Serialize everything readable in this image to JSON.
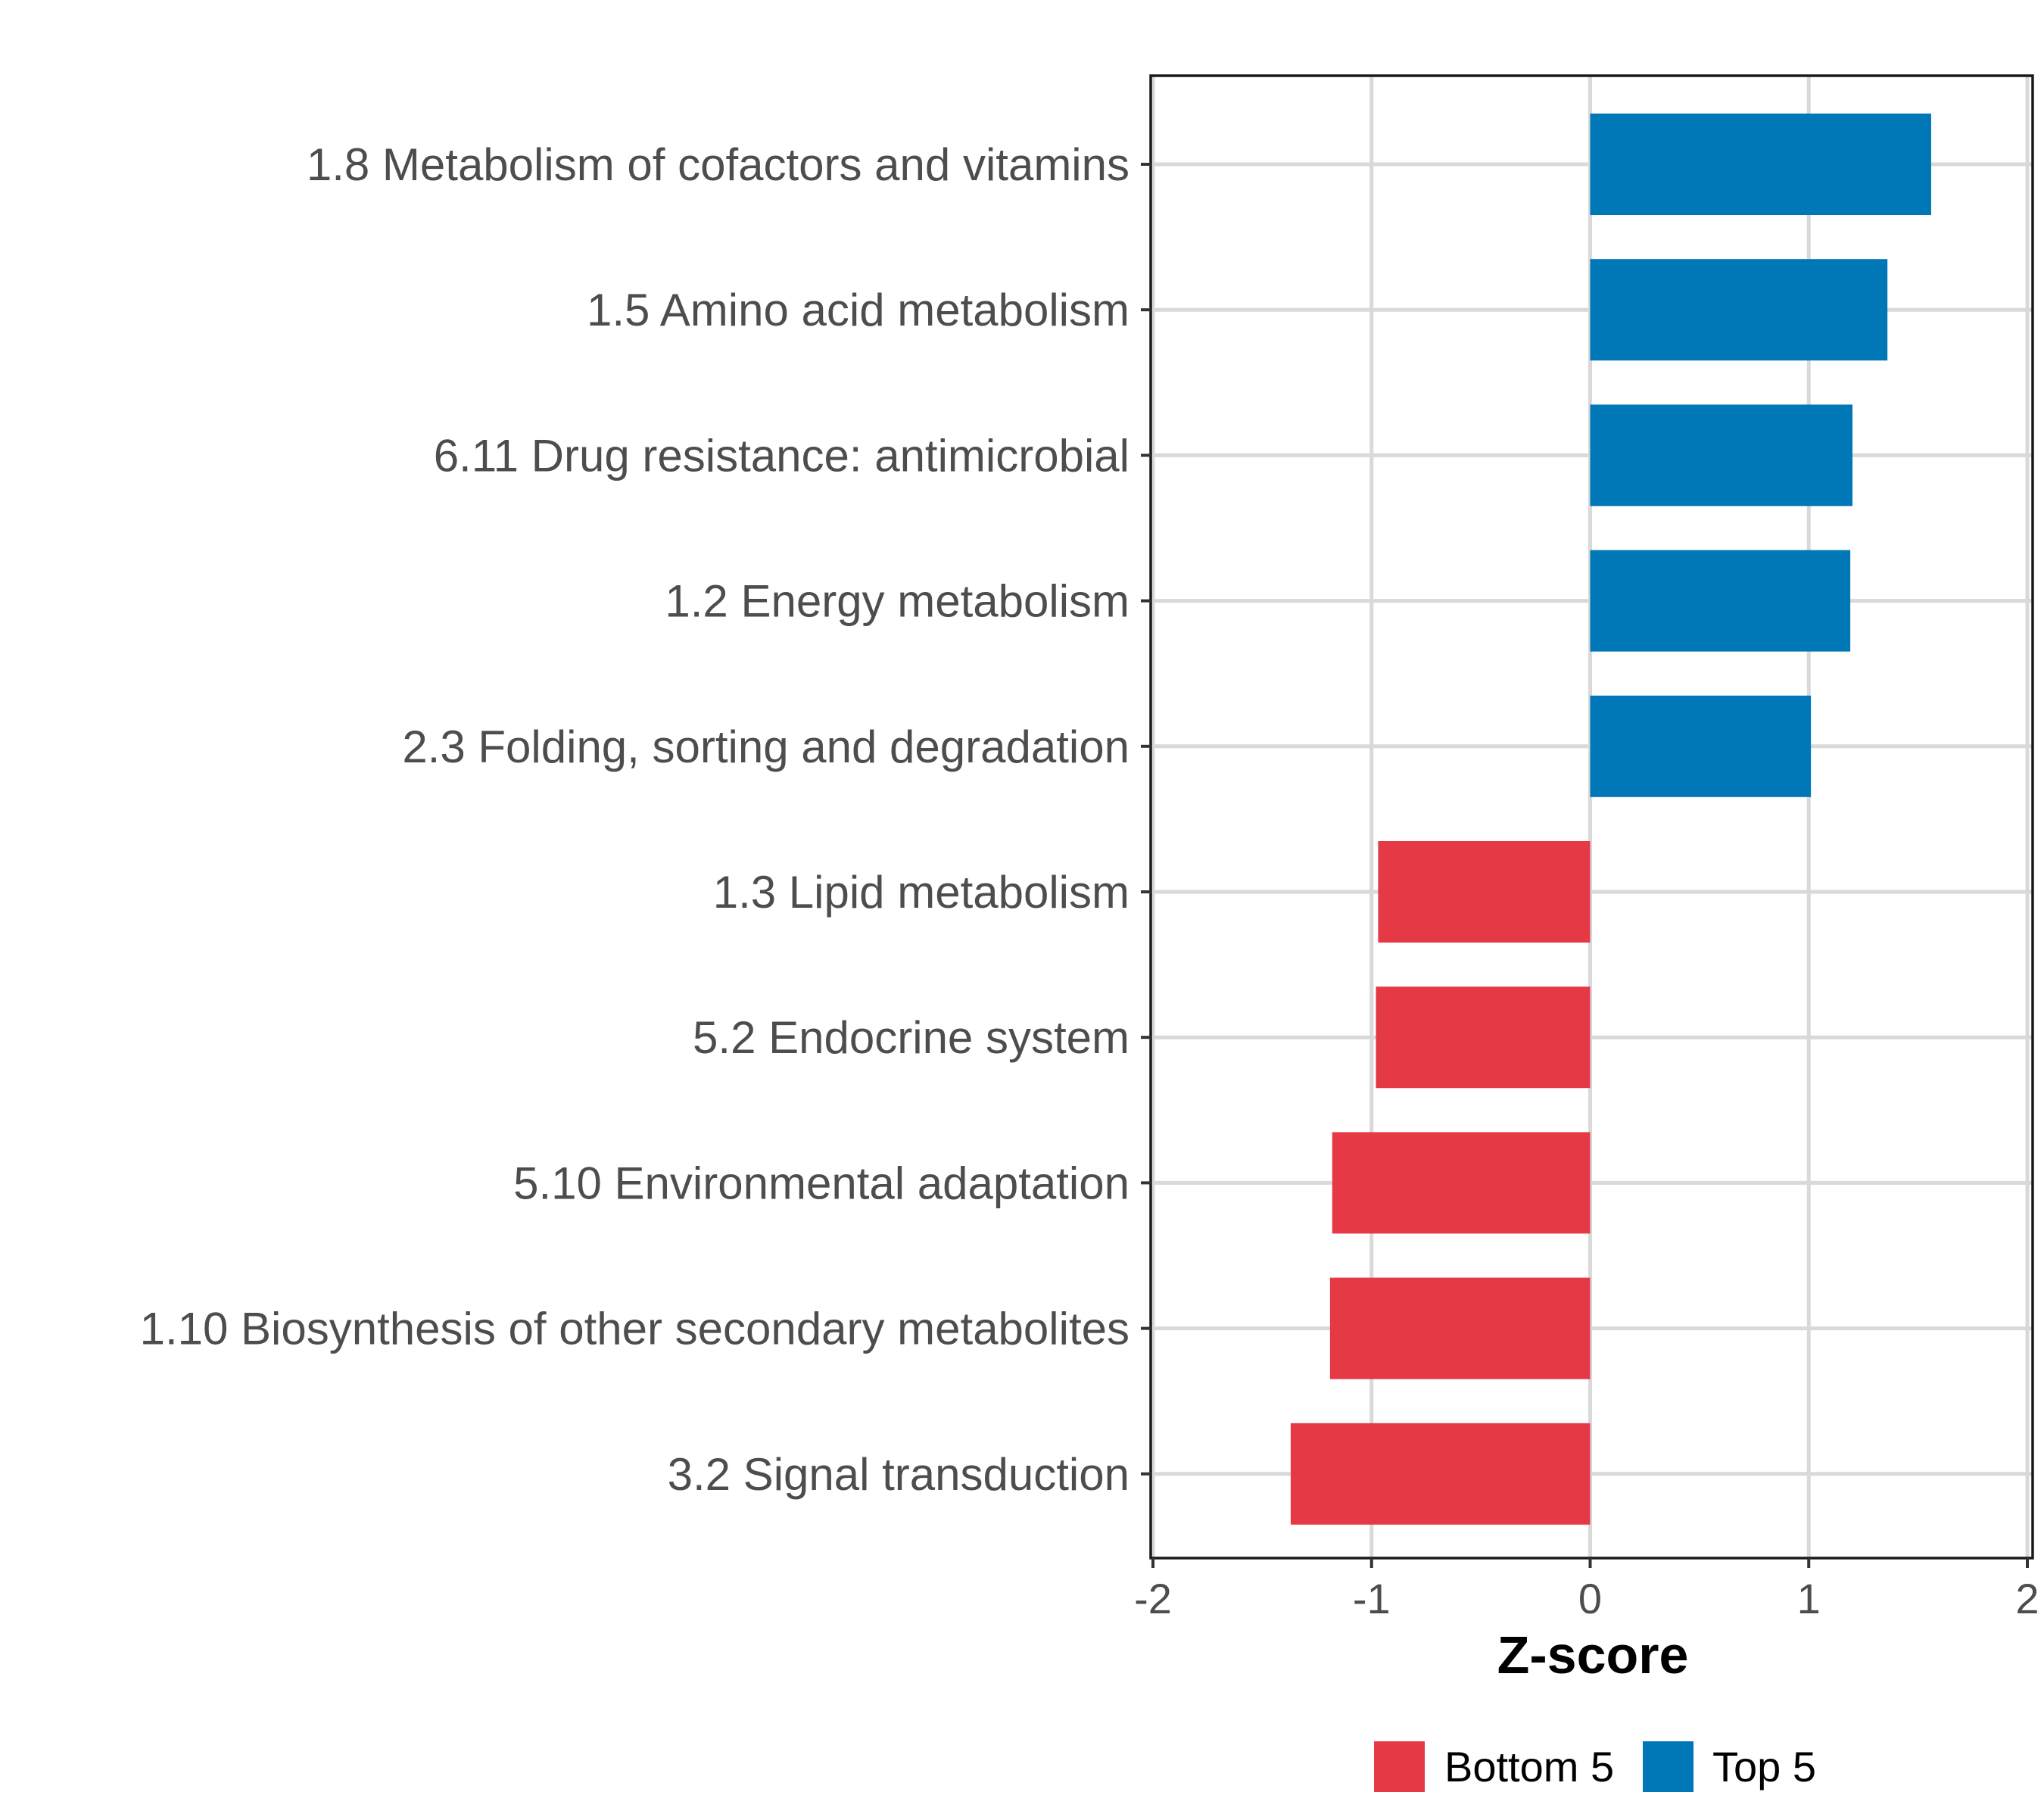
{
  "chart_data": {
    "type": "bar",
    "orientation": "horizontal",
    "title": "",
    "xlabel": "Z-score",
    "ylabel": "",
    "xlim": [
      -2,
      2
    ],
    "xticks": [
      -2,
      -1,
      0,
      1,
      2
    ],
    "xtick_labels": [
      "-2",
      "-1",
      "0",
      "1",
      "2"
    ],
    "grid": true,
    "categories": [
      "1.8 Metabolism of cofactors and vitamins",
      "1.5 Amino acid metabolism",
      "6.11 Drug resistance: antimicrobial",
      "1.2 Energy metabolism",
      "2.3 Folding, sorting and degradation",
      "1.3 Lipid metabolism",
      "5.2 Endocrine system",
      "5.10 Environmental adaptation",
      "1.10 Biosynthesis of other secondary metabolites",
      "3.2 Signal transduction"
    ],
    "values": [
      1.56,
      1.36,
      1.2,
      1.19,
      1.01,
      -0.97,
      -0.98,
      -1.18,
      -1.19,
      -1.37
    ],
    "groups": [
      "Top 5",
      "Top 5",
      "Top 5",
      "Top 5",
      "Top 5",
      "Bottom 5",
      "Bottom 5",
      "Bottom 5",
      "Bottom 5",
      "Bottom 5"
    ],
    "legend": {
      "position": "bottom",
      "entries": [
        {
          "label": "Bottom 5",
          "color": "#e63946"
        },
        {
          "label": "Top 5",
          "color": "#0077b6"
        }
      ]
    }
  }
}
